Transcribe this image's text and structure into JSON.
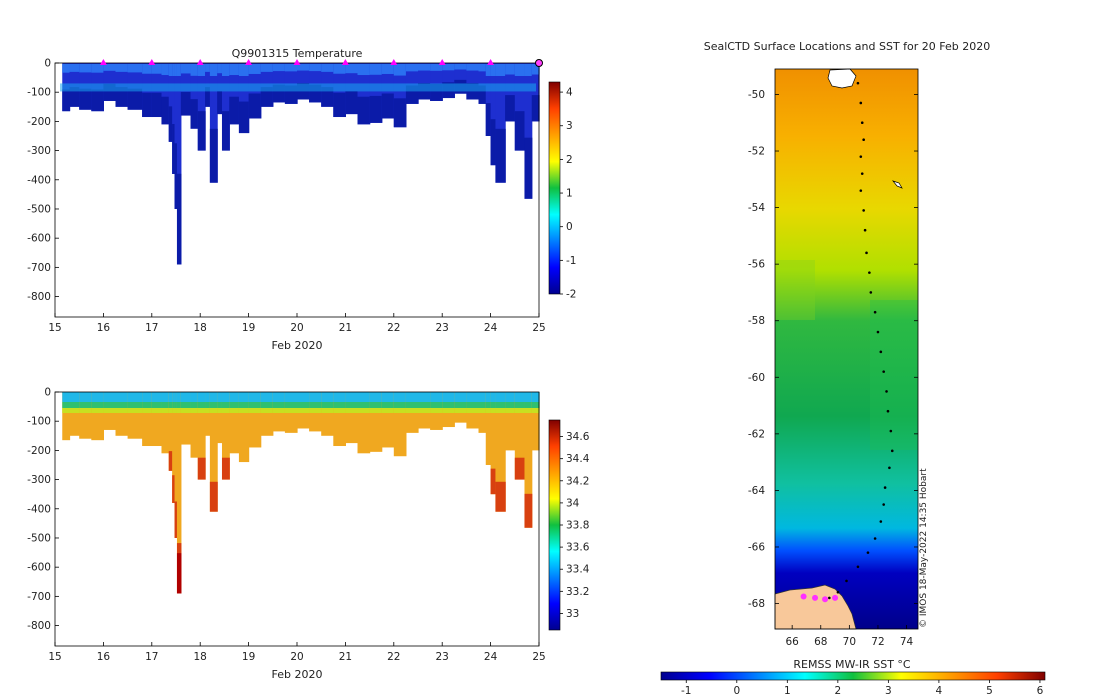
{
  "chart_data": [
    {
      "type": "heatmap",
      "title": "Q9901315  Temperature",
      "xlabel": "Feb 2020",
      "ylabel": "",
      "xlim": [
        15,
        25
      ],
      "ylim": [
        -870,
        0
      ],
      "xticks": [
        15,
        16,
        17,
        18,
        19,
        20,
        21,
        22,
        23,
        24,
        25
      ],
      "yticks": [
        0,
        -100,
        -200,
        -300,
        -400,
        -500,
        -600,
        -700,
        -800
      ],
      "colorbar": {
        "min": -2,
        "max": 4.3,
        "ticks": [
          4,
          3,
          2,
          1,
          0,
          -1,
          -2
        ]
      },
      "surface_markers_x": [
        16,
        17,
        18,
        19,
        20,
        21,
        22,
        23,
        24,
        25
      ],
      "profiles": [
        {
          "x": 15.15,
          "d": 165
        },
        {
          "x": 15.3,
          "d": 150
        },
        {
          "x": 15.5,
          "d": 160
        },
        {
          "x": 15.75,
          "d": 165
        },
        {
          "x": 16.0,
          "d": 130
        },
        {
          "x": 16.25,
          "d": 150
        },
        {
          "x": 16.5,
          "d": 160
        },
        {
          "x": 16.8,
          "d": 185
        },
        {
          "x": 17.0,
          "d": 185
        },
        {
          "x": 17.2,
          "d": 210
        },
        {
          "x": 17.35,
          "d": 270
        },
        {
          "x": 17.42,
          "d": 380
        },
        {
          "x": 17.47,
          "d": 500
        },
        {
          "x": 17.52,
          "d": 690
        },
        {
          "x": 17.6,
          "d": 180
        },
        {
          "x": 17.8,
          "d": 225
        },
        {
          "x": 17.95,
          "d": 300
        },
        {
          "x": 18.1,
          "d": 150
        },
        {
          "x": 18.2,
          "d": 410
        },
        {
          "x": 18.35,
          "d": 175
        },
        {
          "x": 18.45,
          "d": 300
        },
        {
          "x": 18.6,
          "d": 210
        },
        {
          "x": 18.8,
          "d": 240
        },
        {
          "x": 19.0,
          "d": 190
        },
        {
          "x": 19.25,
          "d": 150
        },
        {
          "x": 19.5,
          "d": 135
        },
        {
          "x": 19.75,
          "d": 140
        },
        {
          "x": 20.0,
          "d": 125
        },
        {
          "x": 20.25,
          "d": 135
        },
        {
          "x": 20.5,
          "d": 150
        },
        {
          "x": 20.75,
          "d": 185
        },
        {
          "x": 21.0,
          "d": 175
        },
        {
          "x": 21.25,
          "d": 210
        },
        {
          "x": 21.5,
          "d": 205
        },
        {
          "x": 21.75,
          "d": 190
        },
        {
          "x": 22.0,
          "d": 220
        },
        {
          "x": 22.25,
          "d": 140
        },
        {
          "x": 22.5,
          "d": 125
        },
        {
          "x": 22.75,
          "d": 130
        },
        {
          "x": 23.0,
          "d": 120
        },
        {
          "x": 23.25,
          "d": 105
        },
        {
          "x": 23.5,
          "d": 125
        },
        {
          "x": 23.75,
          "d": 140
        },
        {
          "x": 23.9,
          "d": 250
        },
        {
          "x": 24.0,
          "d": 350
        },
        {
          "x": 24.1,
          "d": 410
        },
        {
          "x": 24.3,
          "d": 200
        },
        {
          "x": 24.5,
          "d": 300
        },
        {
          "x": 24.7,
          "d": 465
        },
        {
          "x": 24.85,
          "d": 200
        }
      ]
    },
    {
      "type": "heatmap",
      "title": "",
      "xlabel": "Feb 2020",
      "ylabel": "",
      "xlim": [
        15,
        25
      ],
      "ylim": [
        -870,
        0
      ],
      "xticks": [
        15,
        16,
        17,
        18,
        19,
        20,
        21,
        22,
        23,
        24,
        25
      ],
      "yticks": [
        0,
        -100,
        -200,
        -300,
        -400,
        -500,
        -600,
        -700,
        -800
      ],
      "colorbar": {
        "min": 32.85,
        "max": 34.75,
        "ticks": [
          34.6,
          34.4,
          34.2,
          34,
          33.8,
          33.6,
          33.4,
          33.2,
          33
        ]
      }
    },
    {
      "type": "heatmap",
      "title": "SealCTD Surface Locations and SST for 20 Feb 2020",
      "xlabel": "",
      "ylabel": "",
      "xlim": [
        64.8,
        74.8
      ],
      "ylim": [
        -68.9,
        -49.1
      ],
      "xticks": [
        66,
        68,
        70,
        72,
        74
      ],
      "yticks": [
        -50,
        -52,
        -54,
        -56,
        -58,
        -60,
        -62,
        -64,
        -66,
        -68
      ],
      "colorbar_label": "REMSS MW-IR SST °C",
      "colorbar": {
        "min": -1.5,
        "max": 6.1,
        "ticks": [
          -1,
          0,
          1,
          2,
          3,
          4,
          5,
          6
        ]
      },
      "copyright": "© IMOS 18-May-2022 14:35 Hobart",
      "track": [
        [
          70.6,
          -49.6
        ],
        [
          70.8,
          -50.3
        ],
        [
          70.9,
          -51.0
        ],
        [
          71.0,
          -51.6
        ],
        [
          70.8,
          -52.2
        ],
        [
          70.9,
          -52.8
        ],
        [
          70.8,
          -53.4
        ],
        [
          71.0,
          -54.1
        ],
        [
          71.1,
          -54.8
        ],
        [
          71.2,
          -55.6
        ],
        [
          71.4,
          -56.3
        ],
        [
          71.5,
          -57.0
        ],
        [
          71.8,
          -57.7
        ],
        [
          72.0,
          -58.4
        ],
        [
          72.2,
          -59.1
        ],
        [
          72.4,
          -59.8
        ],
        [
          72.6,
          -60.5
        ],
        [
          72.7,
          -61.2
        ],
        [
          72.9,
          -61.9
        ],
        [
          73.0,
          -62.6
        ],
        [
          72.8,
          -63.2
        ],
        [
          72.5,
          -63.9
        ],
        [
          72.4,
          -64.5
        ],
        [
          72.2,
          -65.1
        ],
        [
          71.8,
          -65.7
        ],
        [
          71.3,
          -66.2
        ],
        [
          70.6,
          -66.7
        ],
        [
          69.8,
          -67.2
        ],
        [
          69.2,
          -67.6
        ],
        [
          68.6,
          -67.8
        ]
      ],
      "seal_markers": [
        [
          66.8,
          -67.75
        ],
        [
          67.6,
          -67.8
        ],
        [
          68.3,
          -67.85
        ],
        [
          69.0,
          -67.8
        ]
      ]
    }
  ]
}
